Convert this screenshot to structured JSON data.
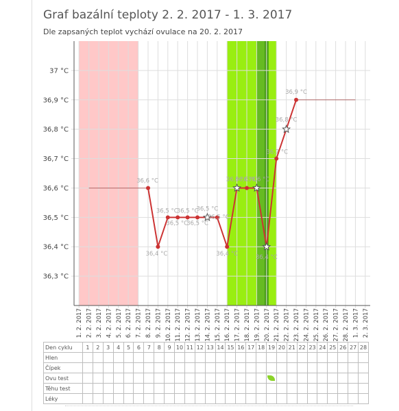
{
  "title": "Graf bazální teploty 2. 2. 2017 - 1. 3. 2017",
  "subtitle": "Dle zapsaných teplot vychází ovulace na 20. 2. 2017",
  "chart_data": {
    "type": "line",
    "title": "Graf bazální teploty 2. 2. 2017 - 1. 3. 2017",
    "y_ticks": [
      "37 °C",
      "36,9 °C",
      "36,8 °C",
      "36,7 °C",
      "36,6 °C",
      "36,5 °C",
      "36,4 °C",
      "36,3 °C"
    ],
    "y_tick_values": [
      37.0,
      36.9,
      36.8,
      36.7,
      36.6,
      36.5,
      36.4,
      36.3
    ],
    "ylim": [
      36.2,
      37.1
    ],
    "x_labels": [
      "1. 2. 2017",
      "2. 2. 2017",
      "3. 2. 2017",
      "4. 2. 2017",
      "5. 2. 2017",
      "6. 2. 2017",
      "7. 2. 2017",
      "8. 2. 2017",
      "9. 2. 2017",
      "10. 2. 2017",
      "11. 2. 2017",
      "12. 2. 2017",
      "13. 2. 2017",
      "14. 2. 2017",
      "15. 2. 2017",
      "16. 2. 2017",
      "17. 2. 2017",
      "18. 2. 2017",
      "19. 2. 2017",
      "20. 2. 2017",
      "21. 2. 2017",
      "22. 2. 2017",
      "23. 2. 2017",
      "24. 2. 2017",
      "25. 2. 2017",
      "26. 2. 2017",
      "27. 2. 2017",
      "28. 2. 2017",
      "1. 3. 2017",
      "2. 3. 2017"
    ],
    "series": [
      {
        "values": [
          null,
          null,
          null,
          null,
          null,
          null,
          null,
          36.6,
          36.4,
          36.5,
          36.5,
          36.5,
          36.5,
          36.5,
          36.5,
          36.4,
          36.6,
          36.6,
          36.6,
          36.4,
          36.7,
          36.8,
          36.9,
          null,
          null,
          null,
          null,
          null,
          null,
          null
        ],
        "labels": [
          null,
          null,
          null,
          null,
          null,
          null,
          null,
          "36,6 °C",
          "36,4 °C",
          "36,5 °C",
          "36,5 °C",
          "36,5 °C",
          "36,5 °C",
          "36,5 °C",
          "36,5 °C",
          "36,4 °C",
          "36,6 °C",
          "36,6 °C",
          "36,6 °C",
          "36,4 °C",
          "36,7 °C",
          "36,8 °C",
          "36,9 °C",
          null,
          null,
          null,
          null,
          null,
          null,
          null
        ],
        "star_points": [
          13,
          16,
          18,
          19,
          21
        ]
      }
    ],
    "coverline_before": {
      "from": 1,
      "to": 7,
      "value": 36.6
    },
    "coverline_after": {
      "from": 22,
      "to": 28,
      "value": 36.9
    },
    "menstruation_band": {
      "from": 0.5,
      "to": 6.5
    },
    "fertile_band": {
      "from": 15.5,
      "to": 20.5
    },
    "ovulation_band": {
      "from": 18.5,
      "to": 19.5
    },
    "colors": {
      "line": "#cc3333",
      "menstruation": "#ffc8c8",
      "fertile": "#99ee11",
      "ovulation": "#66bb22",
      "ovulation_core": "#4a9e1a",
      "grid": "#dddddd",
      "coverline": "#b06a6a"
    }
  },
  "table": {
    "rows": [
      "Den cyklu",
      "Hlen",
      "Čípek",
      "Ovu test",
      "Těhu test",
      "Léky"
    ],
    "days": [
      "1",
      "2",
      "3",
      "4",
      "5",
      "6",
      "7",
      "8",
      "9",
      "10",
      "11",
      "12",
      "13",
      "14",
      "15",
      "16",
      "17",
      "18",
      "19",
      "20",
      "21",
      "22",
      "23",
      "24",
      "25",
      "26",
      "27",
      "28"
    ],
    "ovu_test_positive_day": 19
  }
}
